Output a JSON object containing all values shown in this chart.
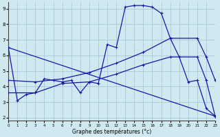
{
  "xlabel": "Graphe des températures (°c)",
  "background_color": "#d0e8f0",
  "grid_color": "#a8c8d8",
  "line_color": "#1515aa",
  "xlim": [
    0,
    23
  ],
  "ylim": [
    1.8,
    9.4
  ],
  "yticks": [
    2,
    3,
    4,
    5,
    6,
    7,
    8,
    9
  ],
  "xticks": [
    0,
    1,
    2,
    3,
    4,
    5,
    6,
    7,
    8,
    9,
    10,
    11,
    12,
    13,
    14,
    15,
    16,
    17,
    18,
    19,
    20,
    21,
    22,
    23
  ],
  "series": [
    {
      "x": [
        0,
        1,
        2,
        3,
        4,
        5,
        6,
        7,
        8,
        9,
        10,
        11,
        12,
        13,
        14,
        15,
        16,
        17,
        18,
        19,
        20,
        21,
        22,
        23
      ],
      "y": [
        6.5,
        3.1,
        3.5,
        3.6,
        4.5,
        4.4,
        4.3,
        4.4,
        3.6,
        4.3,
        4.2,
        6.7,
        6.5,
        9.1,
        9.2,
        9.2,
        9.1,
        8.7,
        7.1,
        5.9,
        4.3,
        4.4,
        2.6,
        2.1
      ]
    },
    {
      "x": [
        0,
        3,
        6,
        9,
        12,
        15,
        18,
        21,
        22,
        23
      ],
      "y": [
        4.4,
        4.3,
        4.5,
        4.9,
        5.5,
        6.2,
        7.1,
        7.1,
        5.9,
        4.4
      ]
    },
    {
      "x": [
        0,
        3,
        6,
        9,
        12,
        15,
        18,
        21,
        22,
        23
      ],
      "y": [
        3.6,
        3.6,
        4.2,
        4.3,
        4.8,
        5.4,
        5.9,
        5.9,
        4.4,
        2.1
      ]
    },
    {
      "comment": "Declining line from x=0 y=6.5 to x=23 y=2.1",
      "x": [
        0,
        23
      ],
      "y": [
        6.5,
        2.1
      ]
    }
  ]
}
